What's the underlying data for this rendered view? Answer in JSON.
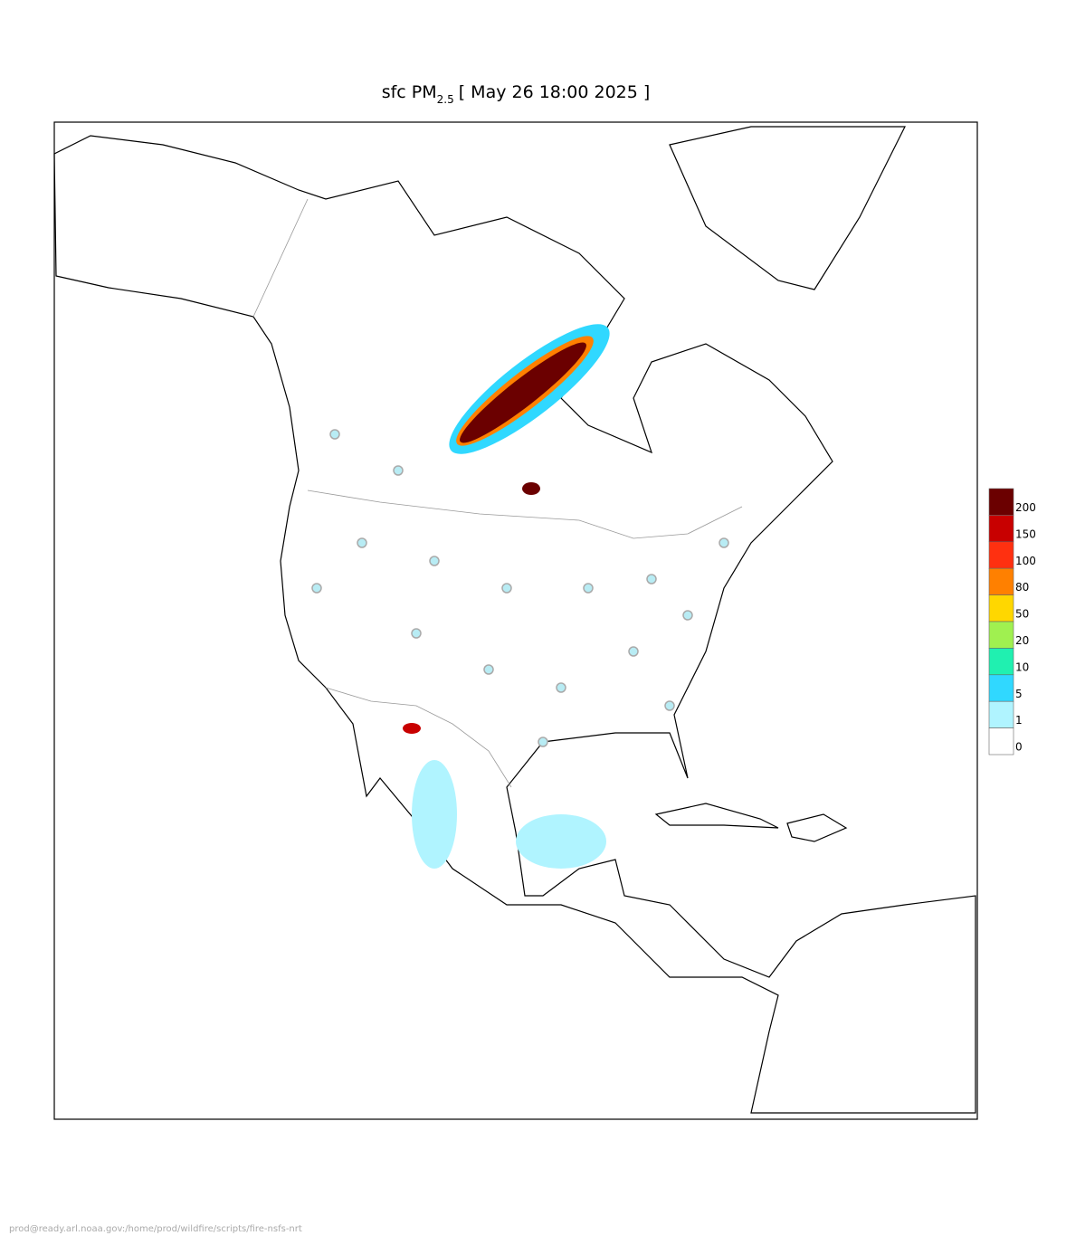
{
  "title": {
    "prefix": "sfc PM",
    "subscript": "2.5",
    "suffix": "[ May 26 18:00 2025 ]"
  },
  "legend": {
    "colors": [
      "#6b0000",
      "#c80000",
      "#ff3010",
      "#ff8000",
      "#ffd700",
      "#a0f050",
      "#20f0b0",
      "#30d8ff",
      "#b0f4ff",
      "#ffffff"
    ],
    "labels": [
      200,
      150,
      100,
      80,
      50,
      20,
      10,
      5,
      1,
      0
    ]
  },
  "footer": "prod@ready.arl.noaa.gov:/home/prod/wildfire/scripts/fire-nsfs-nrt"
}
